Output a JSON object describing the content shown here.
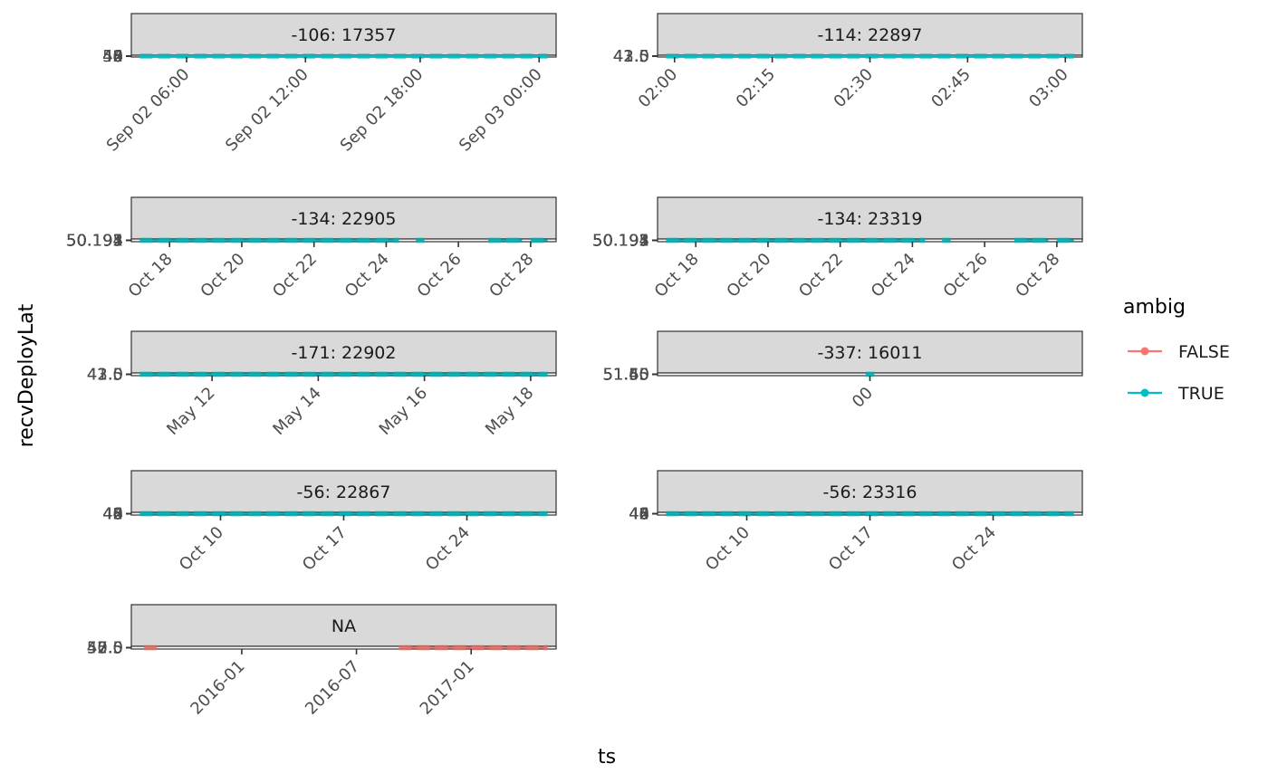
{
  "chart_data": {
    "type": "line",
    "xlabel": "ts",
    "ylabel": "recvDeployLat",
    "legend": {
      "title": "ambig",
      "placement": "right",
      "entries": [
        {
          "label": "FALSE",
          "color": "#F8766D"
        },
        {
          "label": "TRUE",
          "color": "#00BFC4"
        }
      ]
    },
    "strip_fill": "#d9d9d9",
    "facets": [
      {
        "label": "-106: 17357",
        "x_ticks": [
          "Sep 02 06:00",
          "Sep 02 12:00",
          "Sep 02 18:00",
          "Sep 03 00:00"
        ],
        "y_ticks": [
          "40",
          "42",
          "44",
          "46",
          "48",
          "50"
        ],
        "series": [
          {
            "name": "TRUE",
            "segments": [
              [
                0.02,
                0.98
              ]
            ]
          }
        ]
      },
      {
        "label": "-114: 22897",
        "x_ticks": [
          "02:00",
          "02:15",
          "02:30",
          "02:45",
          "03:00"
        ],
        "y_ticks": [
          "41.5",
          "42.0",
          "42.5",
          "43.0"
        ],
        "series": [
          {
            "name": "TRUE",
            "segments": [
              [
                0.02,
                0.98
              ]
            ]
          }
        ]
      },
      {
        "label": "-134: 22905",
        "x_ticks": [
          "Oct 18",
          "Oct 20",
          "Oct 22",
          "Oct 24",
          "Oct 26",
          "Oct 28"
        ],
        "y_ticks": [
          "50.191",
          "50.192",
          "50.193",
          "50.194",
          "50.195"
        ],
        "series": [
          {
            "name": "TRUE",
            "segments": [
              [
                0.02,
                0.63
              ],
              [
                0.67,
                0.69
              ],
              [
                0.84,
                0.92
              ],
              [
                0.94,
                0.98
              ]
            ]
          }
        ]
      },
      {
        "label": "-134: 23319",
        "x_ticks": [
          "Oct 18",
          "Oct 20",
          "Oct 22",
          "Oct 24",
          "Oct 26",
          "Oct 28"
        ],
        "y_ticks": [
          "50.191",
          "50.192",
          "50.193",
          "50.194",
          "50.195"
        ],
        "series": [
          {
            "name": "TRUE",
            "segments": [
              [
                0.02,
                0.63
              ],
              [
                0.67,
                0.69
              ],
              [
                0.84,
                0.92
              ],
              [
                0.94,
                0.98
              ]
            ]
          }
        ]
      },
      {
        "label": "-171: 22902",
        "x_ticks": [
          "May 12",
          "May 14",
          "May 16",
          "May 18"
        ],
        "y_ticks": [
          "41.5",
          "42.0",
          "42.5",
          "43.0"
        ],
        "series": [
          {
            "name": "TRUE",
            "segments": [
              [
                0.02,
                0.98
              ]
            ]
          }
        ]
      },
      {
        "label": "-337: 16011",
        "x_ticks": [
          "00"
        ],
        "y_ticks": [
          "51.40",
          "51.45",
          "51.50",
          "51.55",
          "51.60"
        ],
        "series": [
          {
            "name": "TRUE",
            "segments": [
              [
                0.49,
                0.51
              ]
            ]
          }
        ]
      },
      {
        "label": "-56: 22867",
        "x_ticks": [
          "Oct 10",
          "Oct 17",
          "Oct 24"
        ],
        "y_ticks": [
          "40",
          "42",
          "44",
          "46",
          "48"
        ],
        "series": [
          {
            "name": "TRUE",
            "segments": [
              [
                0.02,
                0.98
              ]
            ]
          }
        ]
      },
      {
        "label": "-56: 23316",
        "x_ticks": [
          "Oct 10",
          "Oct 17",
          "Oct 24"
        ],
        "y_ticks": [
          "40",
          "42",
          "44",
          "46",
          "48"
        ],
        "series": [
          {
            "name": "TRUE",
            "segments": [
              [
                0.02,
                0.98
              ]
            ]
          }
        ]
      },
      {
        "label": "NA",
        "x_ticks": [
          "2016-01",
          "2016-07",
          "2017-01"
        ],
        "y_ticks": [
          "42.5",
          "45.0",
          "47.5",
          "50.0",
          "52.5"
        ],
        "series": [
          {
            "name": "FALSE",
            "segments": [
              [
                0.03,
                0.06
              ],
              [
                0.63,
                0.98
              ]
            ]
          }
        ]
      }
    ]
  }
}
